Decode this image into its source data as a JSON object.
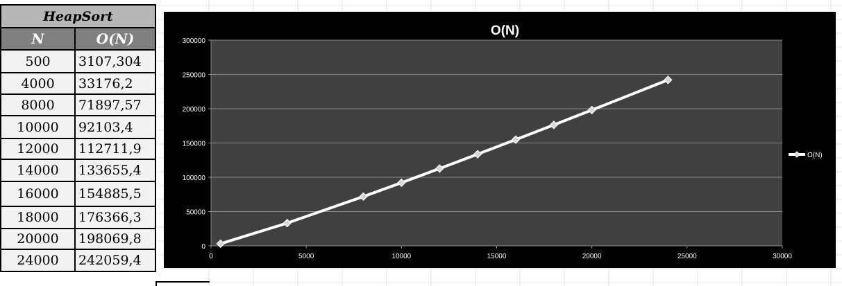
{
  "table": {
    "title": "HeapSort",
    "headers": [
      "N",
      "O(N)"
    ],
    "rows": [
      {
        "n": "500",
        "v": "3107,304"
      },
      {
        "n": "4000",
        "v": "33176,2"
      },
      {
        "n": "8000",
        "v": "71897,57"
      },
      {
        "n": "10000",
        "v": "92103,4"
      },
      {
        "n": "12000",
        "v": "112711,9"
      },
      {
        "n": "14000",
        "v": "133655,4"
      },
      {
        "n": "16000",
        "v": "154885,5"
      },
      {
        "n": "18000",
        "v": "176366,3"
      },
      {
        "n": "20000",
        "v": "198069,8"
      },
      {
        "n": "24000",
        "v": "242059,4"
      }
    ]
  },
  "chart_data": {
    "type": "line",
    "title": "O(N)",
    "xlabel": "",
    "ylabel": "",
    "xlim": [
      0,
      30000
    ],
    "ylim": [
      0,
      300000
    ],
    "xticks": [
      0,
      5000,
      10000,
      15000,
      20000,
      25000,
      30000
    ],
    "yticks": [
      0,
      50000,
      100000,
      150000,
      200000,
      250000,
      300000
    ],
    "grid": true,
    "legend": "right",
    "series": [
      {
        "name": "O(N)",
        "color": "#ffffff",
        "marker": "diamond",
        "x": [
          500,
          4000,
          8000,
          10000,
          12000,
          14000,
          16000,
          18000,
          20000,
          24000
        ],
        "y": [
          3107.304,
          33176.2,
          71897.57,
          92103.4,
          112711.9,
          133655.4,
          154885.5,
          176366.3,
          198069.8,
          242059.4
        ]
      }
    ],
    "colors": {
      "background": "#000000",
      "plot_area": "#404040",
      "gridline": "#8a8a8a",
      "text": "#ffffff"
    }
  }
}
